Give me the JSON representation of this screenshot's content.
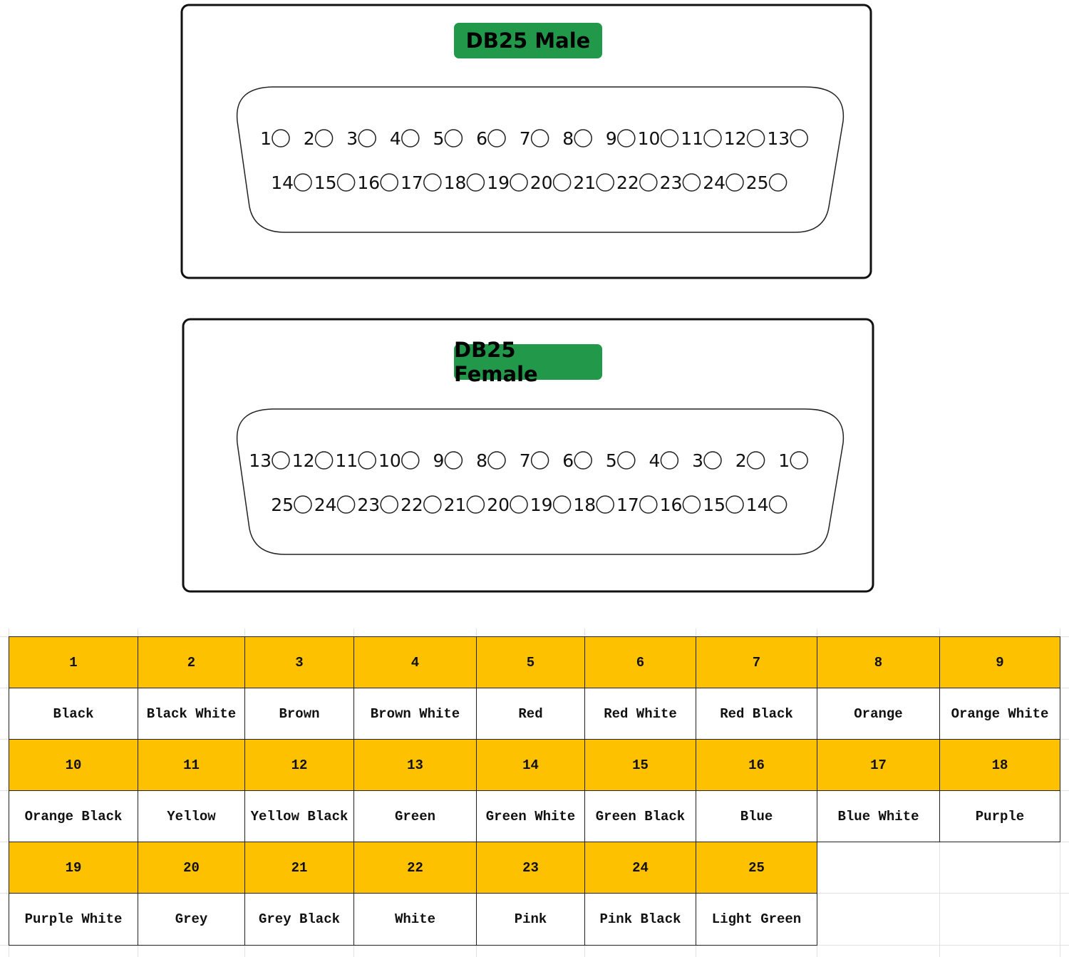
{
  "male": {
    "title": "DB25 Male",
    "row1": [
      "1",
      "2",
      "3",
      "4",
      "5",
      "6",
      "7",
      "8",
      "9",
      "10",
      "11",
      "12",
      "13"
    ],
    "row2": [
      "14",
      "15",
      "16",
      "17",
      "18",
      "19",
      "20",
      "21",
      "22",
      "23",
      "24",
      "25"
    ]
  },
  "female": {
    "title": "DB25 Female",
    "row1": [
      "13",
      "12",
      "11",
      "10",
      "9",
      "8",
      "7",
      "6",
      "5",
      "4",
      "3",
      "2",
      "1"
    ],
    "row2": [
      "25",
      "24",
      "23",
      "22",
      "21",
      "20",
      "19",
      "18",
      "17",
      "16",
      "15",
      "14"
    ]
  },
  "colors": {
    "badge": "#22994a",
    "pin_header": "#fdc100"
  },
  "wiring_table": {
    "rows": [
      [
        {
          "pin": "1",
          "color": "Black"
        },
        {
          "pin": "2",
          "color": "Black White"
        },
        {
          "pin": "3",
          "color": "Brown"
        },
        {
          "pin": "4",
          "color": "Brown White"
        },
        {
          "pin": "5",
          "color": "Red"
        },
        {
          "pin": "6",
          "color": "Red White"
        },
        {
          "pin": "7",
          "color": "Red Black"
        },
        {
          "pin": "8",
          "color": "Orange"
        },
        {
          "pin": "9",
          "color": "Orange White"
        }
      ],
      [
        {
          "pin": "10",
          "color": "Orange Black"
        },
        {
          "pin": "11",
          "color": "Yellow"
        },
        {
          "pin": "12",
          "color": "Yellow Black"
        },
        {
          "pin": "13",
          "color": "Green"
        },
        {
          "pin": "14",
          "color": "Green White"
        },
        {
          "pin": "15",
          "color": "Green Black"
        },
        {
          "pin": "16",
          "color": "Blue"
        },
        {
          "pin": "17",
          "color": "Blue White"
        },
        {
          "pin": "18",
          "color": "Purple"
        }
      ],
      [
        {
          "pin": "19",
          "color": "Purple White"
        },
        {
          "pin": "20",
          "color": "Grey"
        },
        {
          "pin": "21",
          "color": "Grey Black"
        },
        {
          "pin": "22",
          "color": "White"
        },
        {
          "pin": "23",
          "color": "Pink"
        },
        {
          "pin": "24",
          "color": "Pink Black"
        },
        {
          "pin": "25",
          "color": "Light Green"
        }
      ]
    ]
  }
}
